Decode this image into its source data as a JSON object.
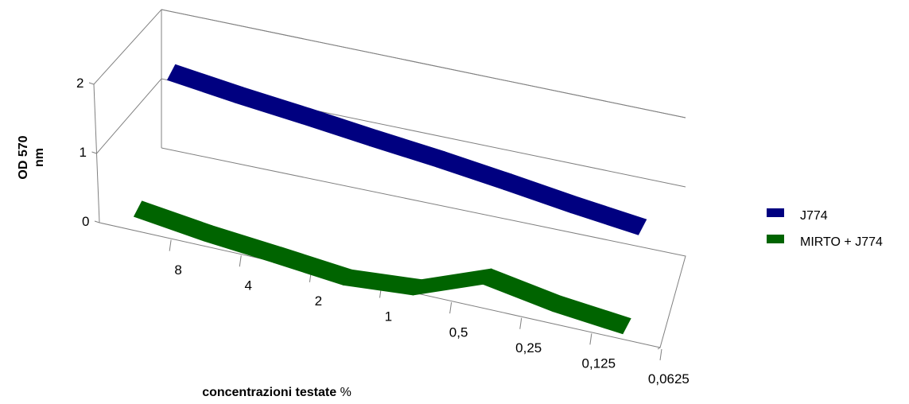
{
  "chart_data": {
    "type": "line",
    "style": "3d-ribbon",
    "title": "",
    "xlabel": "concentrazioni testate %",
    "ylabel": "OD 570 nm",
    "ylabel_lines": [
      "OD 570",
      "nm"
    ],
    "ylim": [
      0,
      2
    ],
    "y_ticks": [
      "0",
      "1",
      "2"
    ],
    "categories": [
      "8",
      "4",
      "2",
      "1",
      "0,5",
      "0,25",
      "0,125",
      "0,0625"
    ],
    "grid": true,
    "legend_position": "right",
    "series": [
      {
        "name": "J774",
        "color": "#000080",
        "values": [
          1.58,
          1.46,
          1.36,
          1.25,
          1.15,
          1.03,
          0.9,
          0.79
        ]
      },
      {
        "name": "MIRTO + J774",
        "color": "#006400",
        "values": [
          0.22,
          0.09,
          0.0,
          -0.1,
          -0.02,
          0.36,
          0.19,
          0.09
        ]
      }
    ]
  }
}
